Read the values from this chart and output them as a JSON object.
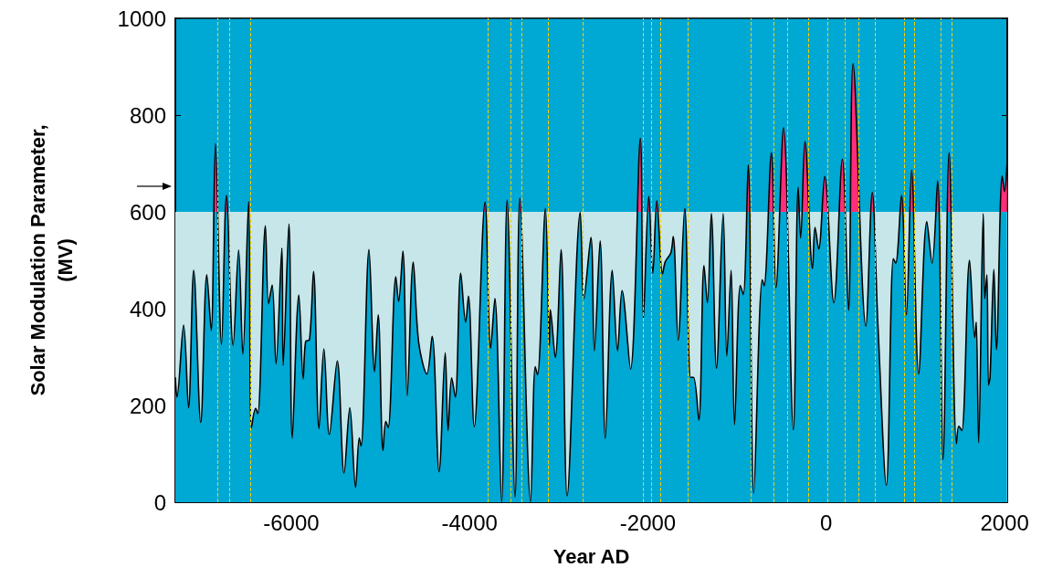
{
  "chart_data": {
    "type": "area",
    "xlabel": "Year AD",
    "ylabel": "Solar Modulation Parameter,\n(MV)",
    "xlim": [
      -7300,
      2030
    ],
    "xticks": [
      -6000,
      -4000,
      -2000,
      0,
      2000
    ],
    "ylim": [
      0,
      1000
    ],
    "yticks": [
      0,
      200,
      400,
      600,
      800,
      1000
    ],
    "marker": "none",
    "bands": [
      {
        "axis": "y",
        "from": 0,
        "to": 600,
        "color": "#c6e6ea"
      }
    ],
    "ref_lines": [
      {
        "axis": "x",
        "value": -6827,
        "color": "#f5d000",
        "line_style": "dashed"
      },
      {
        "axis": "x",
        "value": -6694,
        "color": "#f5d000",
        "line_style": "dashed"
      },
      {
        "axis": "x",
        "value": -6454,
        "color": "#f5d000",
        "line_style": "dashed"
      },
      {
        "axis": "x",
        "value": -3795,
        "color": "#f5d000",
        "line_style": "dashed"
      },
      {
        "axis": "x",
        "value": -3541,
        "color": "#f5d000",
        "line_style": "dashed"
      },
      {
        "axis": "x",
        "value": -3412,
        "color": "#f5d000",
        "line_style": "dashed"
      },
      {
        "axis": "x",
        "value": -3118,
        "color": "#f5d000",
        "line_style": "dashed"
      },
      {
        "axis": "x",
        "value": -2731,
        "color": "#f5d000",
        "line_style": "dashed"
      },
      {
        "axis": "x",
        "value": -2058,
        "color": "#f5d000",
        "line_style": "dashed"
      },
      {
        "axis": "x",
        "value": -1966,
        "color": "#f5d000",
        "line_style": "dashed"
      },
      {
        "axis": "x",
        "value": -1863,
        "color": "#f5d000",
        "line_style": "dashed"
      },
      {
        "axis": "x",
        "value": -1556,
        "color": "#f5d000",
        "line_style": "dashed"
      },
      {
        "axis": "x",
        "value": -844,
        "color": "#f5d000",
        "line_style": "dashed"
      },
      {
        "axis": "x",
        "value": -591,
        "color": "#f5d000",
        "line_style": "dashed"
      },
      {
        "axis": "x",
        "value": -431,
        "color": "#f5d000",
        "line_style": "dashed"
      },
      {
        "axis": "x",
        "value": -195,
        "color": "#f5d000",
        "line_style": "dashed"
      },
      {
        "axis": "x",
        "value": 17,
        "color": "#f5d000",
        "line_style": "dashed"
      },
      {
        "axis": "x",
        "value": 205,
        "color": "#f5d000",
        "line_style": "dashed"
      },
      {
        "axis": "x",
        "value": 366,
        "color": "#f5d000",
        "line_style": "dashed"
      },
      {
        "axis": "x",
        "value": 551,
        "color": "#f5d000",
        "line_style": "dashed"
      },
      {
        "axis": "x",
        "value": 872,
        "color": "#f5d000",
        "line_style": "dashed"
      },
      {
        "axis": "x",
        "value": 988,
        "color": "#f5d000",
        "line_style": "dashed"
      },
      {
        "axis": "x",
        "value": 1282,
        "color": "#f5d000",
        "line_style": "dashed"
      },
      {
        "axis": "x",
        "value": 1412,
        "color": "#f5d000",
        "line_style": "dashed"
      }
    ],
    "series": [
      {
        "color": "#000000",
        "x": [
          -7300,
          -7282,
          -7207,
          -7152,
          -7094,
          -7015,
          -6947,
          -6898,
          -6850,
          -6782,
          -6727,
          -6652,
          -6590,
          -6543,
          -6478,
          -6447,
          -6399,
          -6375,
          -6290,
          -6255,
          -6214,
          -6171,
          -6105,
          -6091,
          -6026,
          -5989,
          -5915,
          -5866,
          -5839,
          -5795,
          -5750,
          -5689,
          -5634,
          -5573,
          -5484,
          -5408,
          -5343,
          -5279,
          -5237,
          -5217,
          -5128,
          -5066,
          -5025,
          -4971,
          -4940,
          -4913,
          -4827,
          -4796,
          -4748,
          -4700,
          -4632,
          -4571,
          -4479,
          -4420,
          -4342,
          -4273,
          -4242,
          -4201,
          -4160,
          -4099,
          -4044,
          -4013,
          -3948,
          -3826,
          -3764,
          -3716,
          -3641,
          -3579,
          -3490,
          -3436,
          -3316,
          -3264,
          -3238,
          -3149,
          -3105,
          -3094,
          -3039,
          -2974,
          -2906,
          -2759,
          -2718,
          -2639,
          -2601,
          -2536,
          -2478,
          -2400,
          -2341,
          -2290,
          -2195,
          -2085,
          -2051,
          -1990,
          -1945,
          -1900,
          -1836,
          -1805,
          -1743,
          -1716,
          -1661,
          -1587,
          -1521,
          -1488,
          -1429,
          -1371,
          -1333,
          -1289,
          -1231,
          -1156,
          -1115,
          -1067,
          -1029,
          -964,
          -930,
          -875,
          -813,
          -718,
          -697,
          -615,
          -564,
          -479,
          -369,
          -315,
          -287,
          -239,
          -154,
          -126,
          -85,
          -17,
          85,
          181,
          250,
          301,
          444,
          516,
          581,
          674,
          752,
          779,
          844,
          899,
          957,
          1036,
          1128,
          1187,
          1249,
          1310,
          1378,
          1460,
          1487,
          1521,
          1607,
          1665,
          1682,
          1709,
          1761,
          1778,
          1802,
          1819,
          1837,
          1880,
          1908,
          1973,
          2000,
          2027
        ],
        "values": [
          258,
          217,
          366,
          195,
          479,
          165,
          470,
          355,
          741,
          326,
          634,
          324,
          521,
          306,
          621,
          154,
          194,
          183,
          571,
          410,
          449,
          286,
          525,
          283,
          575,
          132,
          428,
          255,
          332,
          336,
          477,
          152,
          317,
          140,
          292,
          60,
          195,
          31,
          133,
          116,
          522,
          270,
          387,
          107,
          167,
          154,
          466,
          415,
          519,
          220,
          496,
          330,
          265,
          343,
          63,
          309,
          148,
          257,
          217,
          473,
          372,
          426,
          156,
          620,
          318,
          421,
          0,
          624,
          11,
          628,
          1,
          280,
          263,
          607,
          324,
          398,
          299,
          522,
          13,
          599,
          421,
          547,
          313,
          540,
          132,
          479,
          313,
          437,
          275,
          752,
          379,
          632,
          473,
          623,
          472,
          497,
          515,
          549,
          335,
          607,
          258,
          258,
          170,
          489,
          412,
          596,
          277,
          596,
          302,
          479,
          160,
          448,
          429,
          697,
          19,
          460,
          447,
          722,
          443,
          774,
          150,
          651,
          546,
          745,
          483,
          568,
          523,
          673,
          412,
          709,
          396,
          906,
          364,
          640,
          360,
          35,
          503,
          494,
          634,
          387,
          686,
          265,
          580,
          494,
          664,
          88,
          723,
          121,
          157,
          148,
          500,
          340,
          372,
          123,
          596,
          421,
          470,
          242,
          258,
          481,
          315,
          674,
          642,
          698
        ]
      }
    ]
  }
}
